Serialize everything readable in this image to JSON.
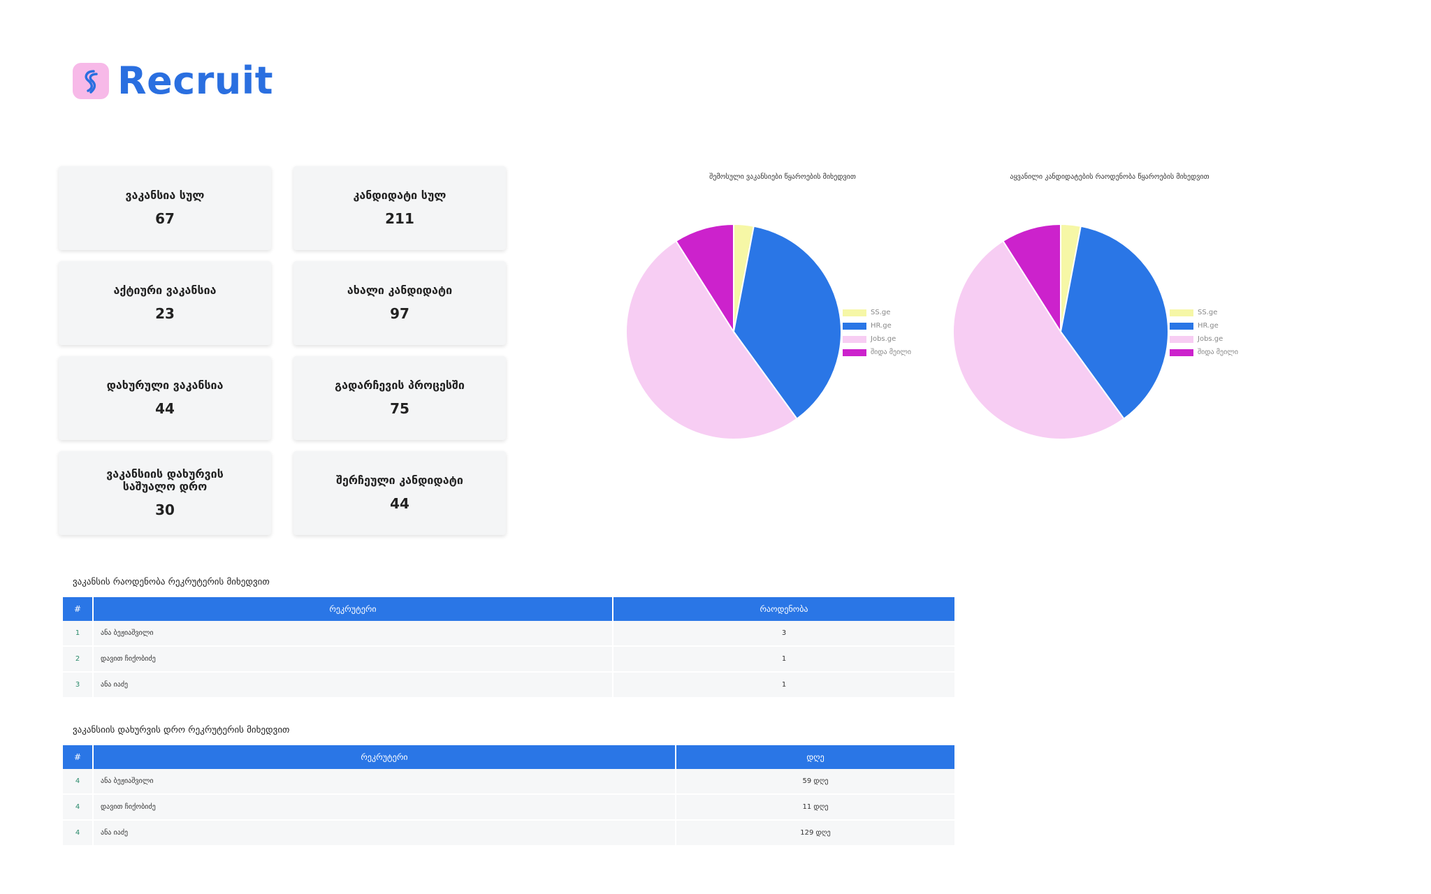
{
  "brand": {
    "name": "Recruit",
    "color": "#2a6fe0",
    "icon_bg": "#f7b9e8"
  },
  "stats": [
    {
      "label": "ვაკანსია სულ",
      "value": "67"
    },
    {
      "label": "კანდიდატი სულ",
      "value": "211"
    },
    {
      "label": "აქტიური ვაკანსია",
      "value": "23"
    },
    {
      "label": "ახალი კანდიდატი",
      "value": "97"
    },
    {
      "label": "დახურული ვაკანსია",
      "value": "44"
    },
    {
      "label": "გადარჩევის პროცესში",
      "value": "75"
    },
    {
      "label": "ვაკანსიის დახურვის საშუალო დრო",
      "value": "30"
    },
    {
      "label": "შერჩეული კანდიდატი",
      "value": "44"
    }
  ],
  "chart_data": [
    {
      "type": "pie",
      "title": "შემოსული ვაკანსიები წყაროების მიხედვით",
      "categories": [
        "SS.ge",
        "HR.ge",
        "Jobs.ge",
        "შიდა მეილი"
      ],
      "values": [
        3,
        37,
        51,
        9
      ],
      "colors": [
        "#f6f7a6",
        "#2a76e6",
        "#f7cdf3",
        "#cc22cc"
      ],
      "legend_position": "right"
    },
    {
      "type": "pie",
      "title": "აყვანილი კანდიდატების რაოდენობა წყაროების მიხედვით",
      "categories": [
        "SS.ge",
        "HR.ge",
        "Jobs.ge",
        "შიდა მეილი"
      ],
      "values": [
        3,
        37,
        51,
        9
      ],
      "colors": [
        "#f6f7a6",
        "#2a76e6",
        "#f7cdf3",
        "#cc22cc"
      ],
      "legend_position": "right"
    }
  ],
  "table1": {
    "title": "ვაკანსის რაოდენობა რეკრუტერის მიხედვით",
    "headers": [
      "#",
      "რეკრუტერი",
      "რაოდენობა"
    ],
    "rows": [
      {
        "idx": "1",
        "name": "ანა ბეჟიაშვილი",
        "value": "3"
      },
      {
        "idx": "2",
        "name": "დავით ჩიქობიძე",
        "value": "1"
      },
      {
        "idx": "3",
        "name": "ანა იაძე",
        "value": "1"
      }
    ]
  },
  "table2": {
    "title": "ვაკანსიის დახურვის დრო რეკრუტერის მიხედვით",
    "headers": [
      "#",
      "რეკრუტერი",
      "დღე"
    ],
    "rows": [
      {
        "idx": "4",
        "name": "ანა ბეჟიაშვილი",
        "value": "59 დღე"
      },
      {
        "idx": "4",
        "name": "დავით ჩიქობიძე",
        "value": "11 დღე"
      },
      {
        "idx": "4",
        "name": "ანა იაძე",
        "value": "129 დღე"
      }
    ]
  }
}
